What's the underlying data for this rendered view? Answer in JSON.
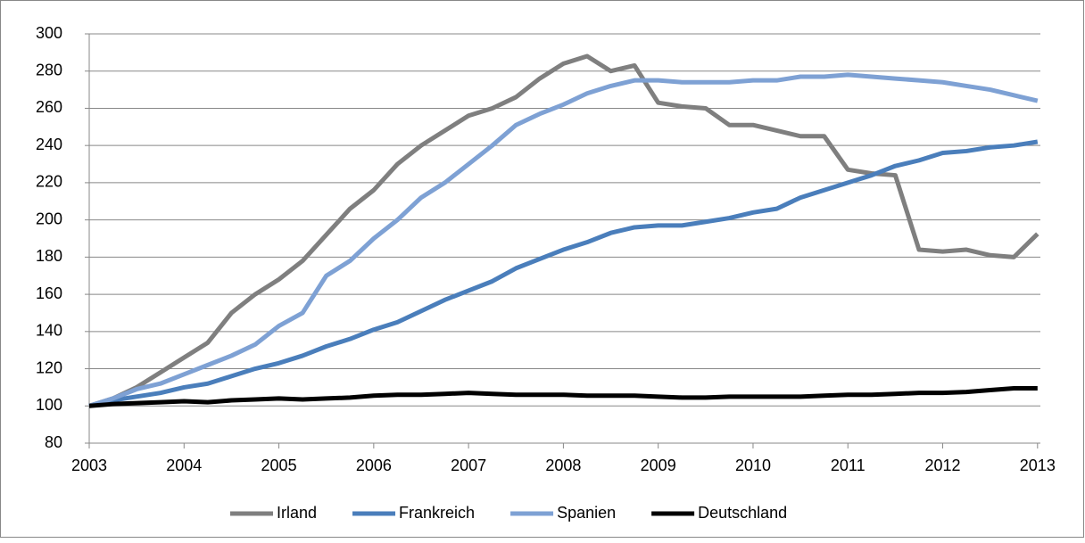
{
  "chart_data": {
    "type": "line",
    "x": [
      2003,
      2003.25,
      2003.5,
      2003.75,
      2004,
      2004.25,
      2004.5,
      2004.75,
      2005,
      2005.25,
      2005.5,
      2005.75,
      2006,
      2006.25,
      2006.5,
      2006.75,
      2007,
      2007.25,
      2007.5,
      2007.75,
      2008,
      2008.25,
      2008.5,
      2008.75,
      2009,
      2009.25,
      2009.5,
      2009.75,
      2010,
      2010.25,
      2010.5,
      2010.75,
      2011,
      2011.25,
      2011.5,
      2011.75,
      2012,
      2012.25,
      2012.5,
      2012.75,
      2013
    ],
    "series": [
      {
        "name": "Irland",
        "color": "#7f7f7f",
        "values": [
          100,
          104,
          110,
          118,
          126,
          134,
          150,
          160,
          168,
          178,
          192,
          206,
          216,
          230,
          240,
          248,
          256,
          260,
          266,
          276,
          284,
          288,
          280,
          283,
          263,
          261,
          260,
          251,
          251,
          248,
          245,
          245,
          227,
          225,
          224,
          184,
          183,
          184,
          181,
          180,
          192.5
        ]
      },
      {
        "name": "Frankreich",
        "color": "#4a7ebb",
        "values": [
          100,
          103,
          105,
          107,
          110,
          112,
          116,
          120,
          123,
          127,
          132,
          136,
          141,
          145,
          151,
          157,
          162,
          167,
          174,
          179,
          184,
          188,
          193,
          196,
          197,
          197,
          199,
          201,
          204,
          206,
          212,
          216,
          220,
          224,
          229,
          232,
          236,
          237,
          239,
          240,
          242
        ]
      },
      {
        "name": "Spanien",
        "color": "#7ea1d4",
        "values": [
          100,
          104,
          109,
          112,
          117,
          122,
          127,
          133,
          143,
          150,
          170,
          178,
          190,
          200,
          212,
          220,
          230,
          240,
          251,
          257,
          262,
          268,
          272,
          275,
          275,
          274,
          274,
          274,
          275,
          275,
          277,
          277,
          278,
          277,
          276,
          275,
          274,
          272,
          270,
          267,
          264
        ]
      },
      {
        "name": "Deutschland",
        "color": "#000000",
        "values": [
          100,
          101,
          101.5,
          102,
          102.5,
          102,
          103,
          103.5,
          104,
          103.5,
          104,
          104.5,
          105.5,
          106,
          106,
          106.5,
          107,
          106.5,
          106,
          106,
          106,
          105.5,
          105.5,
          105.5,
          105,
          104.5,
          104.5,
          105,
          105,
          105,
          105,
          105.5,
          106,
          106,
          106.5,
          107,
          107,
          107.5,
          108.5,
          109.5,
          109.5
        ]
      }
    ],
    "xlim": [
      2003,
      2013.03
    ],
    "xticks": [
      2003,
      2004,
      2005,
      2006,
      2007,
      2008,
      2009,
      2010,
      2011,
      2012,
      2013
    ],
    "ylim": [
      80,
      300
    ],
    "yticks": [
      80,
      100,
      120,
      140,
      160,
      180,
      200,
      220,
      240,
      260,
      280,
      300
    ],
    "grid": true,
    "legend": "bottom"
  }
}
